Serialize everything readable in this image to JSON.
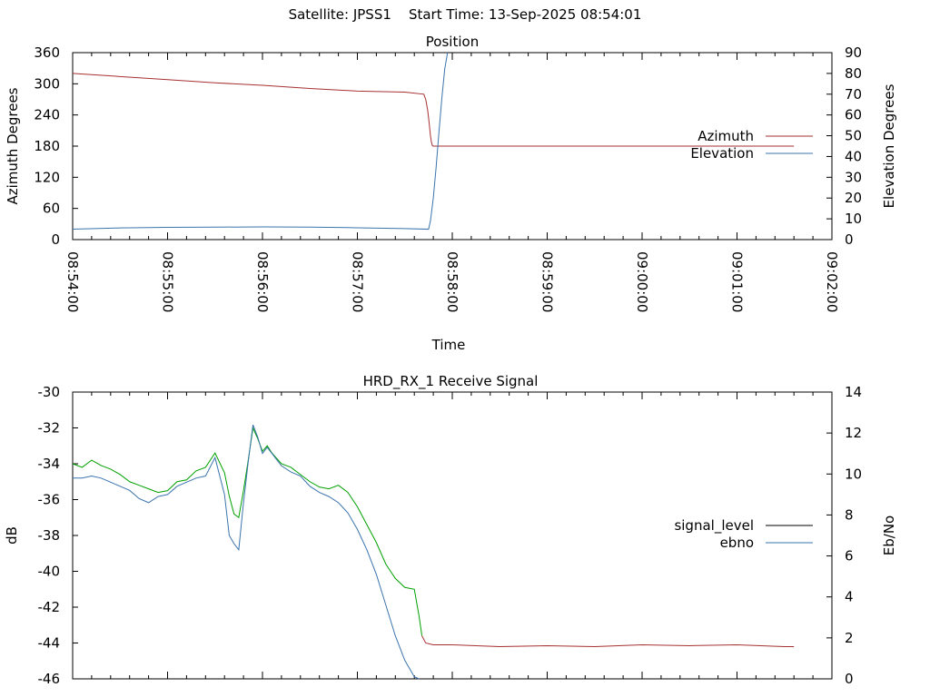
{
  "page": {
    "title": "Satellite: JPSS1    Start Time: 13-Sep-2025 08:54:01"
  },
  "chart_data": [
    {
      "type": "line",
      "title": "Position",
      "xlabel": "Time",
      "ylabel_left": "Azimuth Degrees",
      "ylabel_right": "Elevation Degrees",
      "x_ticks": [
        "08:54:00",
        "08:55:00",
        "08:56:00",
        "08:57:00",
        "08:58:00",
        "08:59:00",
        "09:00:00",
        "09:01:00",
        "09:02:00"
      ],
      "x_range_minutes": [
        0,
        8
      ],
      "ylim_left": [
        0,
        360
      ],
      "yticks_left": [
        0,
        60,
        120,
        180,
        240,
        300,
        360
      ],
      "ylim_right": [
        0,
        90
      ],
      "yticks_right": [
        0,
        10,
        20,
        30,
        40,
        50,
        60,
        70,
        80,
        90
      ],
      "legend_position": "right",
      "series": [
        {
          "name": "Azimuth",
          "axis": "left",
          "color": "#a63030",
          "x": [
            0.0,
            0.5,
            1.0,
            1.5,
            2.0,
            2.5,
            3.0,
            3.5,
            3.7,
            3.72,
            3.74,
            3.75,
            3.76,
            3.77,
            3.78,
            3.79,
            3.8,
            3.9,
            4.5,
            5.5,
            6.5,
            7.5,
            7.6
          ],
          "values": [
            320,
            314,
            308,
            302,
            297,
            291,
            286,
            284,
            280,
            270,
            250,
            235,
            218,
            200,
            188,
            181,
            180,
            180,
            180,
            180,
            180,
            180,
            180
          ]
        },
        {
          "name": "Elevation",
          "axis": "right",
          "color": "#3a73ad",
          "x": [
            0.0,
            0.5,
            1.0,
            1.5,
            2.0,
            2.5,
            3.0,
            3.5,
            3.75,
            3.77,
            3.8,
            3.83,
            3.86,
            3.89,
            3.92,
            3.95
          ],
          "values": [
            5.0,
            5.6,
            5.9,
            6.0,
            6.1,
            6.0,
            5.7,
            5.3,
            5.0,
            9,
            20,
            35,
            52,
            68,
            82,
            90
          ]
        }
      ]
    },
    {
      "type": "line",
      "title": "HRD_RX_1 Receive Signal",
      "ylabel_left": "dB",
      "ylabel_right": "Eb/No",
      "x_range_minutes": [
        0,
        8
      ],
      "ylim_left": [
        -46,
        -30
      ],
      "yticks_left": [
        -46,
        -44,
        -42,
        -40,
        -38,
        -36,
        -34,
        -32,
        -30
      ],
      "ylim_right": [
        0,
        14
      ],
      "yticks_right": [
        0,
        2,
        4,
        6,
        8,
        10,
        12,
        14
      ],
      "legend_position": "right",
      "series": [
        {
          "name": "signal_level",
          "axis": "left",
          "color": "#00a000",
          "color_after_loss": "#a63030",
          "loss_x": 3.68,
          "x": [
            0.0,
            0.1,
            0.2,
            0.3,
            0.4,
            0.5,
            0.6,
            0.7,
            0.8,
            0.9,
            1.0,
            1.1,
            1.2,
            1.3,
            1.4,
            1.5,
            1.6,
            1.65,
            1.7,
            1.75,
            1.8,
            1.85,
            1.9,
            1.95,
            2.0,
            2.05,
            2.1,
            2.2,
            2.3,
            2.4,
            2.5,
            2.6,
            2.7,
            2.8,
            2.9,
            3.0,
            3.1,
            3.2,
            3.3,
            3.4,
            3.5,
            3.6,
            3.65,
            3.68,
            3.72,
            3.8,
            4.0,
            4.5,
            5.0,
            5.5,
            6.0,
            6.5,
            7.0,
            7.5,
            7.6
          ],
          "values": [
            -34.0,
            -34.2,
            -33.8,
            -34.1,
            -34.3,
            -34.6,
            -35.0,
            -35.2,
            -35.4,
            -35.6,
            -35.5,
            -35.0,
            -34.9,
            -34.4,
            -34.2,
            -33.4,
            -34.5,
            -35.8,
            -36.8,
            -37.0,
            -35.5,
            -33.8,
            -32.0,
            -32.6,
            -33.3,
            -33.0,
            -33.4,
            -34.0,
            -34.2,
            -34.6,
            -35.0,
            -35.3,
            -35.4,
            -35.2,
            -35.6,
            -36.4,
            -37.4,
            -38.4,
            -39.6,
            -40.4,
            -40.9,
            -41.0,
            -42.5,
            -43.6,
            -44.0,
            -44.1,
            -44.1,
            -44.2,
            -44.15,
            -44.2,
            -44.1,
            -44.15,
            -44.1,
            -44.2,
            -44.2
          ]
        },
        {
          "name": "ebno",
          "axis": "right",
          "color": "#3a73ad",
          "x": [
            0.0,
            0.1,
            0.2,
            0.3,
            0.4,
            0.5,
            0.6,
            0.7,
            0.8,
            0.9,
            1.0,
            1.1,
            1.2,
            1.3,
            1.4,
            1.5,
            1.6,
            1.65,
            1.7,
            1.75,
            1.8,
            1.85,
            1.9,
            1.95,
            2.0,
            2.05,
            2.1,
            2.2,
            2.3,
            2.4,
            2.5,
            2.6,
            2.7,
            2.8,
            2.9,
            3.0,
            3.1,
            3.2,
            3.3,
            3.4,
            3.5,
            3.6,
            3.65
          ],
          "values": [
            9.8,
            9.8,
            9.9,
            9.8,
            9.6,
            9.4,
            9.2,
            8.8,
            8.6,
            8.9,
            9.0,
            9.4,
            9.6,
            9.8,
            9.9,
            10.8,
            9.0,
            7.0,
            6.6,
            6.3,
            8.6,
            10.6,
            12.4,
            11.8,
            11.0,
            11.3,
            11.0,
            10.4,
            10.1,
            9.9,
            9.4,
            9.1,
            8.9,
            8.6,
            8.1,
            7.3,
            6.3,
            5.1,
            3.6,
            2.1,
            0.9,
            0.1,
            0.0
          ]
        }
      ]
    }
  ]
}
